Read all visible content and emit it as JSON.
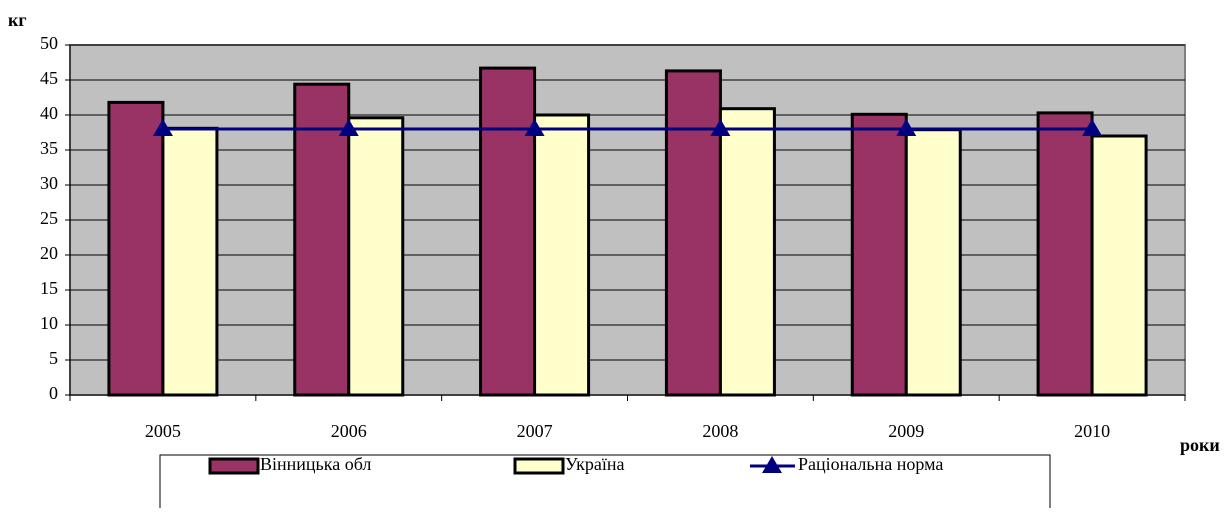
{
  "chart_data": {
    "type": "bar",
    "y_label": "кг",
    "x_label": "роки",
    "categories": [
      "2005",
      "2006",
      "2007",
      "2008",
      "2009",
      "2010"
    ],
    "series": [
      {
        "name": "Вінницька обл",
        "color": "#993366",
        "values": [
          41.8,
          44.4,
          46.7,
          46.3,
          40.1,
          40.3
        ]
      },
      {
        "name": "Україна",
        "color": "#ffffcc",
        "values": [
          38.1,
          39.6,
          40.0,
          40.9,
          37.9,
          37.0
        ]
      },
      {
        "name": "Раціональна норма",
        "color": "#000080",
        "type": "line",
        "values": [
          38,
          38,
          38,
          38,
          38,
          38
        ]
      }
    ],
    "ylim": [
      0,
      50
    ],
    "yticks": [
      0,
      5,
      10,
      15,
      20,
      25,
      30,
      35,
      40,
      45,
      50
    ],
    "grid": true,
    "plot_background": "#c0c0c0",
    "legend": "bottom"
  }
}
